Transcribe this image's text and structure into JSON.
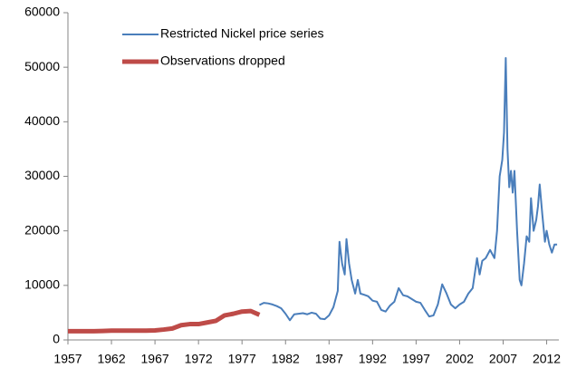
{
  "chart_data": {
    "type": "line",
    "xlim": [
      1957,
      2013.4
    ],
    "xticks": [
      1957,
      1962,
      1967,
      1972,
      1977,
      1982,
      1987,
      1992,
      1997,
      2002,
      2007,
      2012
    ],
    "ylim": [
      0,
      60000
    ],
    "yticks": [
      0,
      10000,
      20000,
      30000,
      40000,
      50000,
      60000
    ],
    "grid": false,
    "legend": "upper left",
    "series": [
      {
        "name": "Restricted Nickel price series",
        "color": "#4a7ebb",
        "width": 2,
        "x": [
          1979,
          1979.5,
          1980,
          1980.5,
          1981,
          1981.5,
          1982,
          1982.5,
          1983,
          1983.5,
          1984,
          1984.5,
          1985,
          1985.5,
          1986,
          1986.5,
          1987,
          1987.5,
          1988,
          1988.2,
          1988.5,
          1988.8,
          1989,
          1989.3,
          1989.6,
          1990,
          1990.3,
          1990.6,
          1991,
          1991.5,
          1992,
          1992.5,
          1993,
          1993.5,
          1994,
          1994.5,
          1995,
          1995.5,
          1996,
          1996.5,
          1997,
          1997.5,
          1998,
          1998.5,
          1999,
          1999.5,
          2000,
          2000.5,
          2001,
          2001.5,
          2002,
          2002.5,
          2003,
          2003.5,
          2004,
          2004.3,
          2004.6,
          2005,
          2005.5,
          2006,
          2006.3,
          2006.6,
          2006.9,
          2007.1,
          2007.3,
          2007.5,
          2007.7,
          2007.9,
          2008.1,
          2008.3,
          2008.6,
          2008.9,
          2009.1,
          2009.4,
          2009.7,
          2010,
          2010.2,
          2010.5,
          2010.8,
          2011,
          2011.2,
          2011.5,
          2011.8,
          2012,
          2012.3,
          2012.6,
          2012.9,
          2013.2
        ],
        "values": [
          6400,
          6800,
          6700,
          6500,
          6200,
          5800,
          4800,
          3600,
          4700,
          4800,
          4900,
          4700,
          5000,
          4800,
          3900,
          3800,
          4500,
          6000,
          9000,
          18000,
          14000,
          12000,
          18500,
          14000,
          11000,
          8500,
          11000,
          8500,
          8300,
          8000,
          7200,
          7000,
          5500,
          5200,
          6300,
          7000,
          9500,
          8200,
          8000,
          7500,
          7000,
          6800,
          5500,
          4300,
          4500,
          6500,
          10200,
          8500,
          6500,
          5800,
          6500,
          7000,
          8500,
          9500,
          15000,
          12000,
          14500,
          15000,
          16500,
          15000,
          20000,
          30000,
          33000,
          38000,
          51700,
          35000,
          28000,
          31000,
          27000,
          31000,
          20000,
          11000,
          10000,
          14000,
          19000,
          18000,
          26000,
          20000,
          22000,
          24500,
          28500,
          23000,
          18000,
          20000,
          17500,
          16000,
          17500,
          17500
        ]
      },
      {
        "name": "Observations dropped",
        "color": "#be4b48",
        "width": 5,
        "x": [
          1957,
          1958,
          1959,
          1960,
          1961,
          1962,
          1963,
          1964,
          1965,
          1966,
          1967,
          1968,
          1969,
          1970,
          1971,
          1972,
          1973,
          1974,
          1975,
          1976,
          1977,
          1978,
          1979
        ],
        "values": [
          1600,
          1600,
          1600,
          1600,
          1650,
          1700,
          1700,
          1700,
          1700,
          1700,
          1750,
          1900,
          2100,
          2700,
          2900,
          2900,
          3200,
          3500,
          4500,
          4800,
          5200,
          5300,
          4600
        ]
      }
    ]
  }
}
